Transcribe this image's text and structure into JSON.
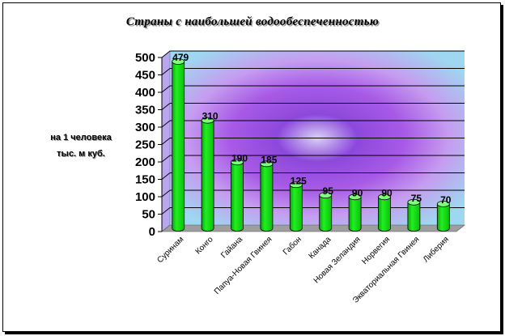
{
  "chart_data": {
    "type": "bar",
    "title": "Страны с наибольшей водообеспеченностью",
    "ylabel_lines": [
      "на 1 человека",
      "тыс. м куб."
    ],
    "xlabel": "",
    "categories": [
      "Суринам",
      "Конго",
      "Гайана",
      "Папуа-Новая Гвинея",
      "Габон",
      "Канада",
      "Новая Зеландия",
      "Норвегия",
      "Экваториальная Гвинея",
      "Либерия"
    ],
    "values": [
      479,
      310,
      190,
      185,
      125,
      95,
      90,
      90,
      75,
      70
    ],
    "ylim": [
      0,
      500
    ],
    "yticks": [
      0,
      50,
      100,
      150,
      200,
      250,
      300,
      350,
      400,
      450,
      500
    ],
    "grid": true,
    "legend": "none",
    "colors": {
      "bar": "#12dd12",
      "bar_dark": "#089a08",
      "bar_light": "#7dff7d",
      "floor": "#9e9e9e",
      "gridline": "#000000",
      "wall_center": "#8a3dd6",
      "wall_edge": "#9fd6f0"
    }
  }
}
